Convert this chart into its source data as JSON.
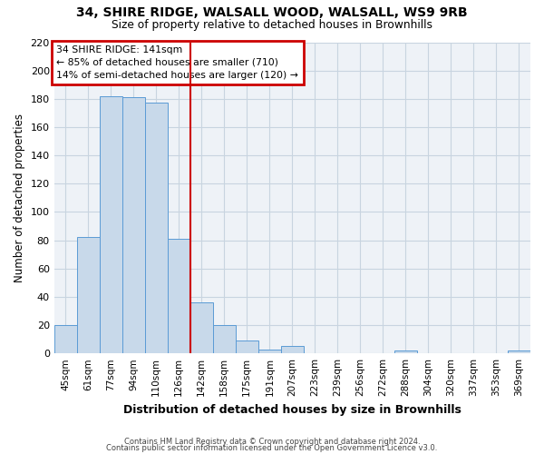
{
  "title_line1": "34, SHIRE RIDGE, WALSALL WOOD, WALSALL, WS9 9RB",
  "title_line2": "Size of property relative to detached houses in Brownhills",
  "xlabel": "Distribution of detached houses by size in Brownhills",
  "ylabel": "Number of detached properties",
  "bar_labels": [
    "45sqm",
    "61sqm",
    "77sqm",
    "94sqm",
    "110sqm",
    "126sqm",
    "142sqm",
    "158sqm",
    "175sqm",
    "191sqm",
    "207sqm",
    "223sqm",
    "239sqm",
    "256sqm",
    "272sqm",
    "288sqm",
    "304sqm",
    "320sqm",
    "337sqm",
    "353sqm",
    "369sqm"
  ],
  "bar_heights": [
    20,
    82,
    182,
    181,
    177,
    81,
    36,
    20,
    9,
    3,
    5,
    0,
    0,
    0,
    0,
    2,
    0,
    0,
    0,
    0,
    2
  ],
  "bar_color": "#c8d9ea",
  "bar_edge_color": "#5b9bd5",
  "grid_color": "#c8d4e0",
  "vline_color": "#cc0000",
  "annotation_line1": "34 SHIRE RIDGE: 141sqm",
  "annotation_line2": "← 85% of detached houses are smaller (710)",
  "annotation_line3": "14% of semi-detached houses are larger (120) →",
  "annotation_box_color": "#cc0000",
  "ylim": [
    0,
    220
  ],
  "yticks": [
    0,
    20,
    40,
    60,
    80,
    100,
    120,
    140,
    160,
    180,
    200,
    220
  ],
  "footer_line1": "Contains HM Land Registry data © Crown copyright and database right 2024.",
  "footer_line2": "Contains public sector information licensed under the Open Government Licence v3.0.",
  "bg_color": "#eef2f7"
}
